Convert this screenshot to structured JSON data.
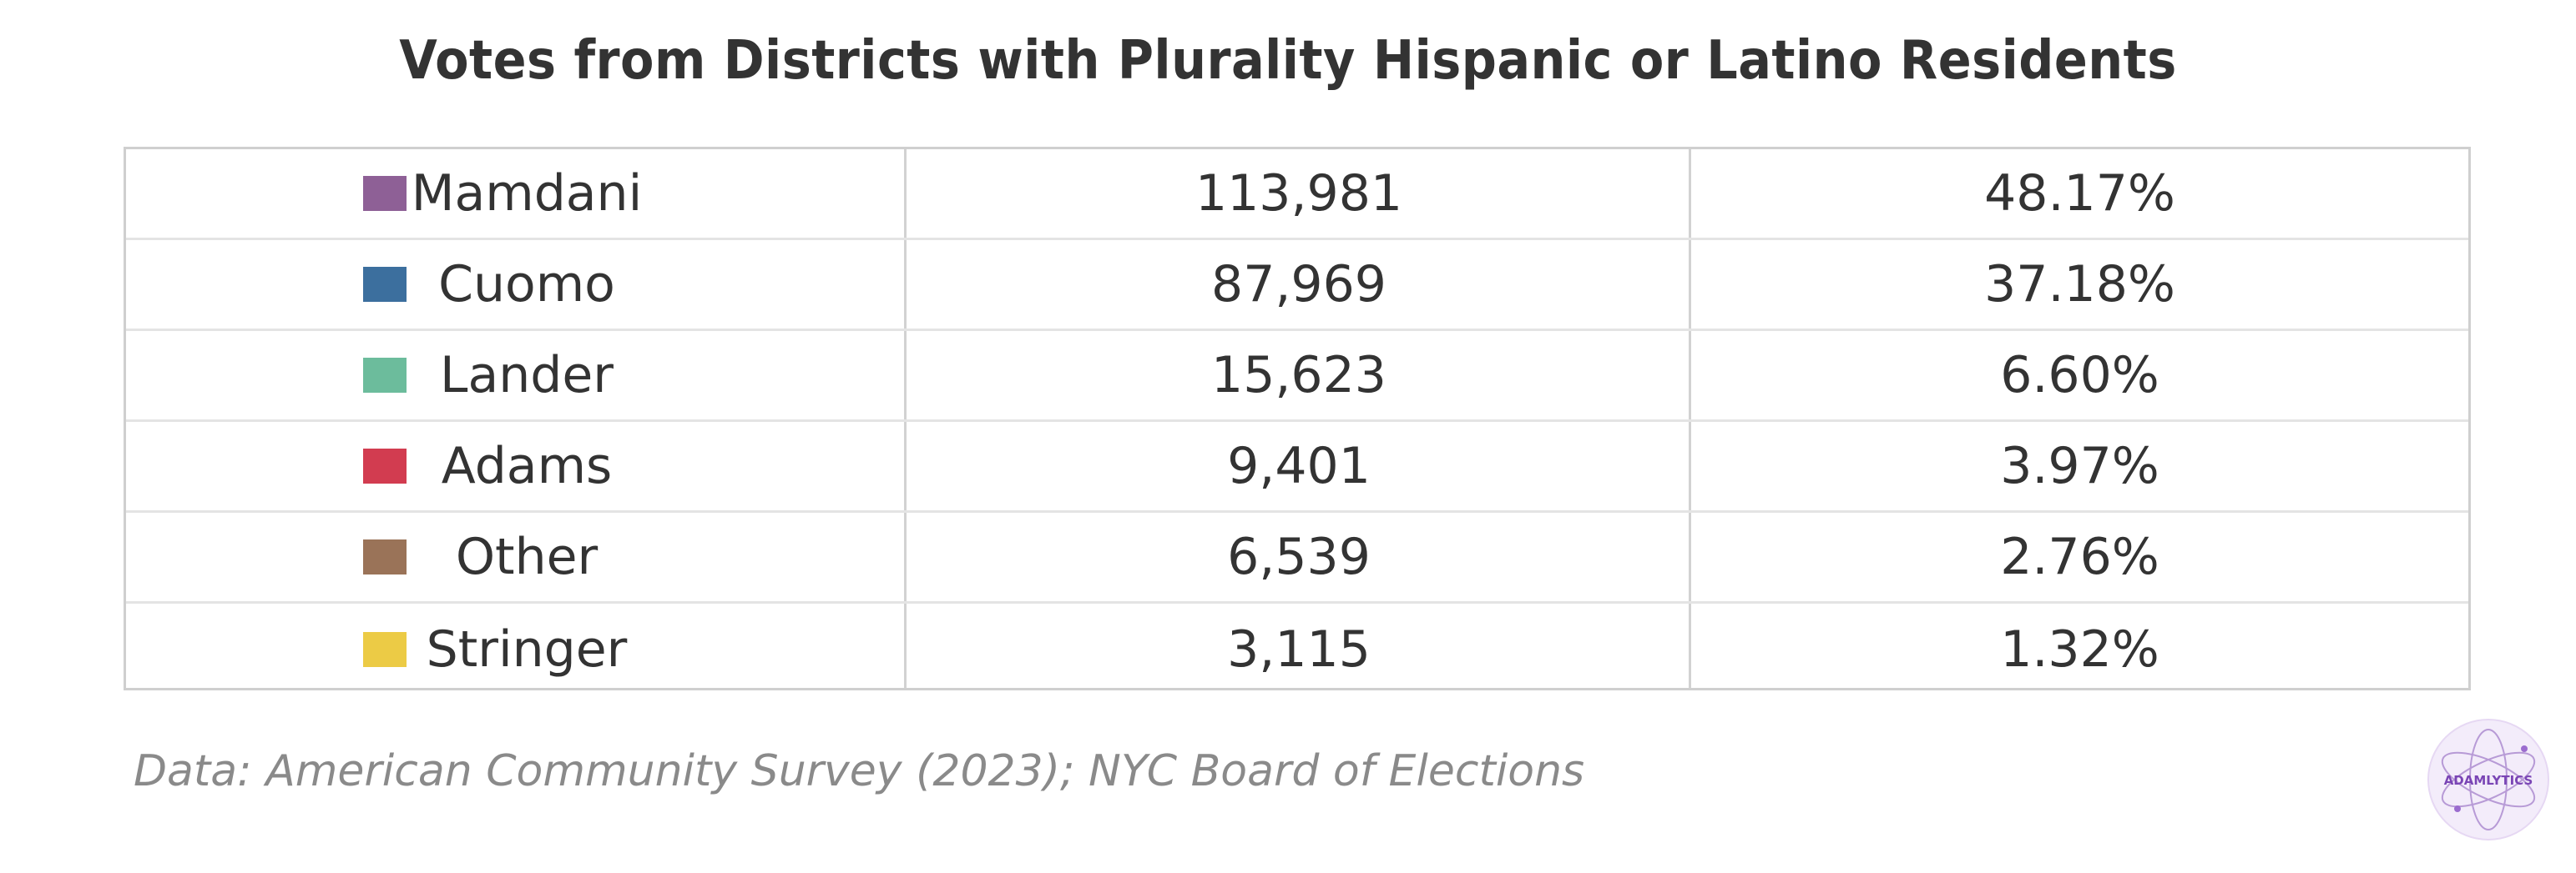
{
  "chart_data": {
    "type": "table",
    "title": "Votes from Districts with Plurality Hispanic or Latino Residents",
    "rows": [
      {
        "name": "Mamdani",
        "votes": "113,981",
        "percent": "48.17%",
        "color": "#8e6096"
      },
      {
        "name": "Cuomo",
        "votes": "87,969",
        "percent": "37.18%",
        "color": "#3c6f9e"
      },
      {
        "name": "Lander",
        "votes": "15,623",
        "percent": "6.60%",
        "color": "#6cbc9c"
      },
      {
        "name": "Adams",
        "votes": "9,401",
        "percent": "3.97%",
        "color": "#d23c50"
      },
      {
        "name": "Other",
        "votes": "6,539",
        "percent": "2.76%",
        "color": "#9a7358"
      },
      {
        "name": "Stringer",
        "votes": "3,115",
        "percent": "1.32%",
        "color": "#eccb45"
      }
    ],
    "source": "Data: American Community Survey (2023); NYC Board of Elections"
  },
  "logo": {
    "text": "ADAMLYTICS",
    "color": "#7a45b5"
  }
}
